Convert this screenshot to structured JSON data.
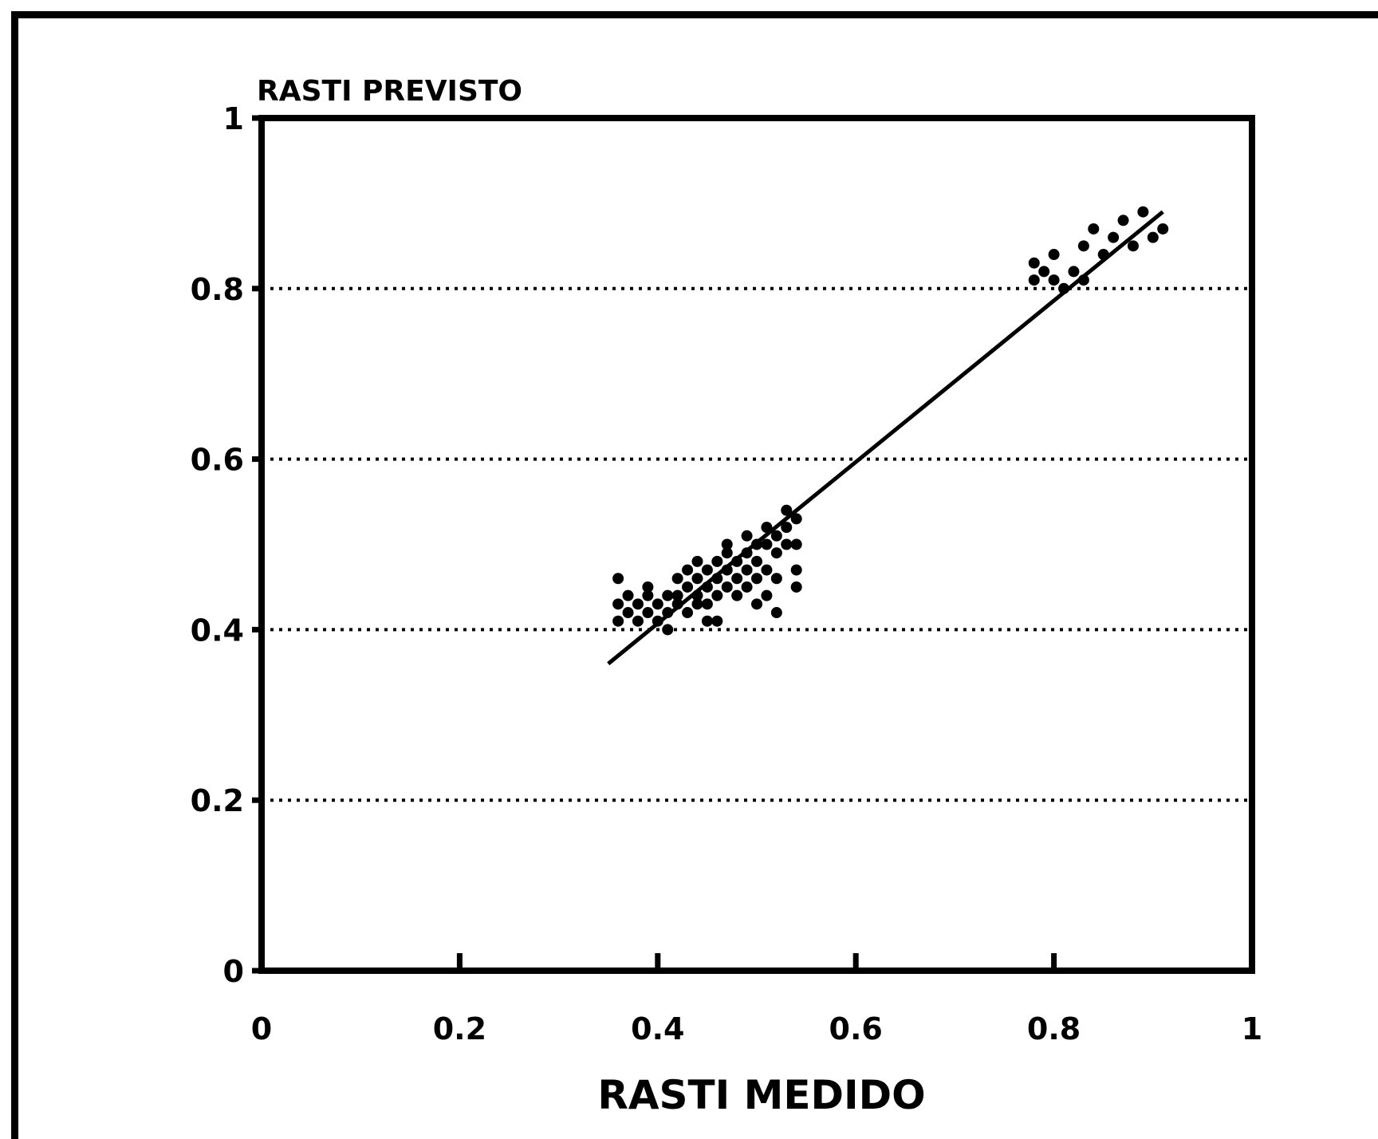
{
  "chart_data": {
    "type": "scatter",
    "ylabel": "RASTI PREVISTO",
    "xlabel": "RASTI MEDIDO",
    "xlim": [
      0,
      1
    ],
    "ylim": [
      0,
      1
    ],
    "x_ticks": [
      "0",
      "0.2",
      "0.4",
      "0.6",
      "0.8",
      "1"
    ],
    "y_ticks": [
      "0",
      "0.2",
      "0.4",
      "0.6",
      "0.8",
      "1"
    ],
    "grid": "horizontal dotted at 0.2, 0.4, 0.6, 0.8",
    "series": [
      {
        "points": [
          [
            0.36,
            0.46
          ],
          [
            0.36,
            0.43
          ],
          [
            0.36,
            0.41
          ],
          [
            0.37,
            0.42
          ],
          [
            0.37,
            0.44
          ],
          [
            0.38,
            0.43
          ],
          [
            0.38,
            0.41
          ],
          [
            0.39,
            0.44
          ],
          [
            0.39,
            0.42
          ],
          [
            0.39,
            0.45
          ],
          [
            0.4,
            0.41
          ],
          [
            0.4,
            0.43
          ],
          [
            0.41,
            0.42
          ],
          [
            0.41,
            0.44
          ],
          [
            0.41,
            0.4
          ],
          [
            0.42,
            0.44
          ],
          [
            0.42,
            0.46
          ],
          [
            0.42,
            0.43
          ],
          [
            0.43,
            0.45
          ],
          [
            0.43,
            0.42
          ],
          [
            0.43,
            0.47
          ],
          [
            0.44,
            0.44
          ],
          [
            0.44,
            0.46
          ],
          [
            0.44,
            0.43
          ],
          [
            0.44,
            0.48
          ],
          [
            0.45,
            0.45
          ],
          [
            0.45,
            0.47
          ],
          [
            0.45,
            0.43
          ],
          [
            0.45,
            0.41
          ],
          [
            0.46,
            0.46
          ],
          [
            0.46,
            0.48
          ],
          [
            0.46,
            0.44
          ],
          [
            0.46,
            0.41
          ],
          [
            0.47,
            0.47
          ],
          [
            0.47,
            0.45
          ],
          [
            0.47,
            0.49
          ],
          [
            0.47,
            0.5
          ],
          [
            0.48,
            0.46
          ],
          [
            0.48,
            0.48
          ],
          [
            0.48,
            0.44
          ],
          [
            0.49,
            0.49
          ],
          [
            0.49,
            0.47
          ],
          [
            0.49,
            0.51
          ],
          [
            0.49,
            0.45
          ],
          [
            0.5,
            0.48
          ],
          [
            0.5,
            0.5
          ],
          [
            0.5,
            0.46
          ],
          [
            0.5,
            0.43
          ],
          [
            0.51,
            0.5
          ],
          [
            0.51,
            0.52
          ],
          [
            0.51,
            0.47
          ],
          [
            0.51,
            0.44
          ],
          [
            0.52,
            0.51
          ],
          [
            0.52,
            0.49
          ],
          [
            0.52,
            0.46
          ],
          [
            0.52,
            0.42
          ],
          [
            0.53,
            0.52
          ],
          [
            0.53,
            0.5
          ],
          [
            0.53,
            0.54
          ],
          [
            0.54,
            0.53
          ],
          [
            0.54,
            0.5
          ],
          [
            0.54,
            0.47
          ],
          [
            0.54,
            0.45
          ],
          [
            0.78,
            0.83
          ],
          [
            0.78,
            0.81
          ],
          [
            0.79,
            0.82
          ],
          [
            0.8,
            0.84
          ],
          [
            0.8,
            0.81
          ],
          [
            0.81,
            0.8
          ],
          [
            0.82,
            0.82
          ],
          [
            0.83,
            0.85
          ],
          [
            0.83,
            0.81
          ],
          [
            0.84,
            0.87
          ],
          [
            0.85,
            0.84
          ],
          [
            0.86,
            0.86
          ],
          [
            0.87,
            0.88
          ],
          [
            0.88,
            0.85
          ],
          [
            0.89,
            0.89
          ],
          [
            0.9,
            0.86
          ],
          [
            0.91,
            0.87
          ]
        ]
      },
      {
        "type": "line",
        "points": [
          [
            0.35,
            0.36
          ],
          [
            0.91,
            0.89
          ]
        ]
      }
    ]
  }
}
